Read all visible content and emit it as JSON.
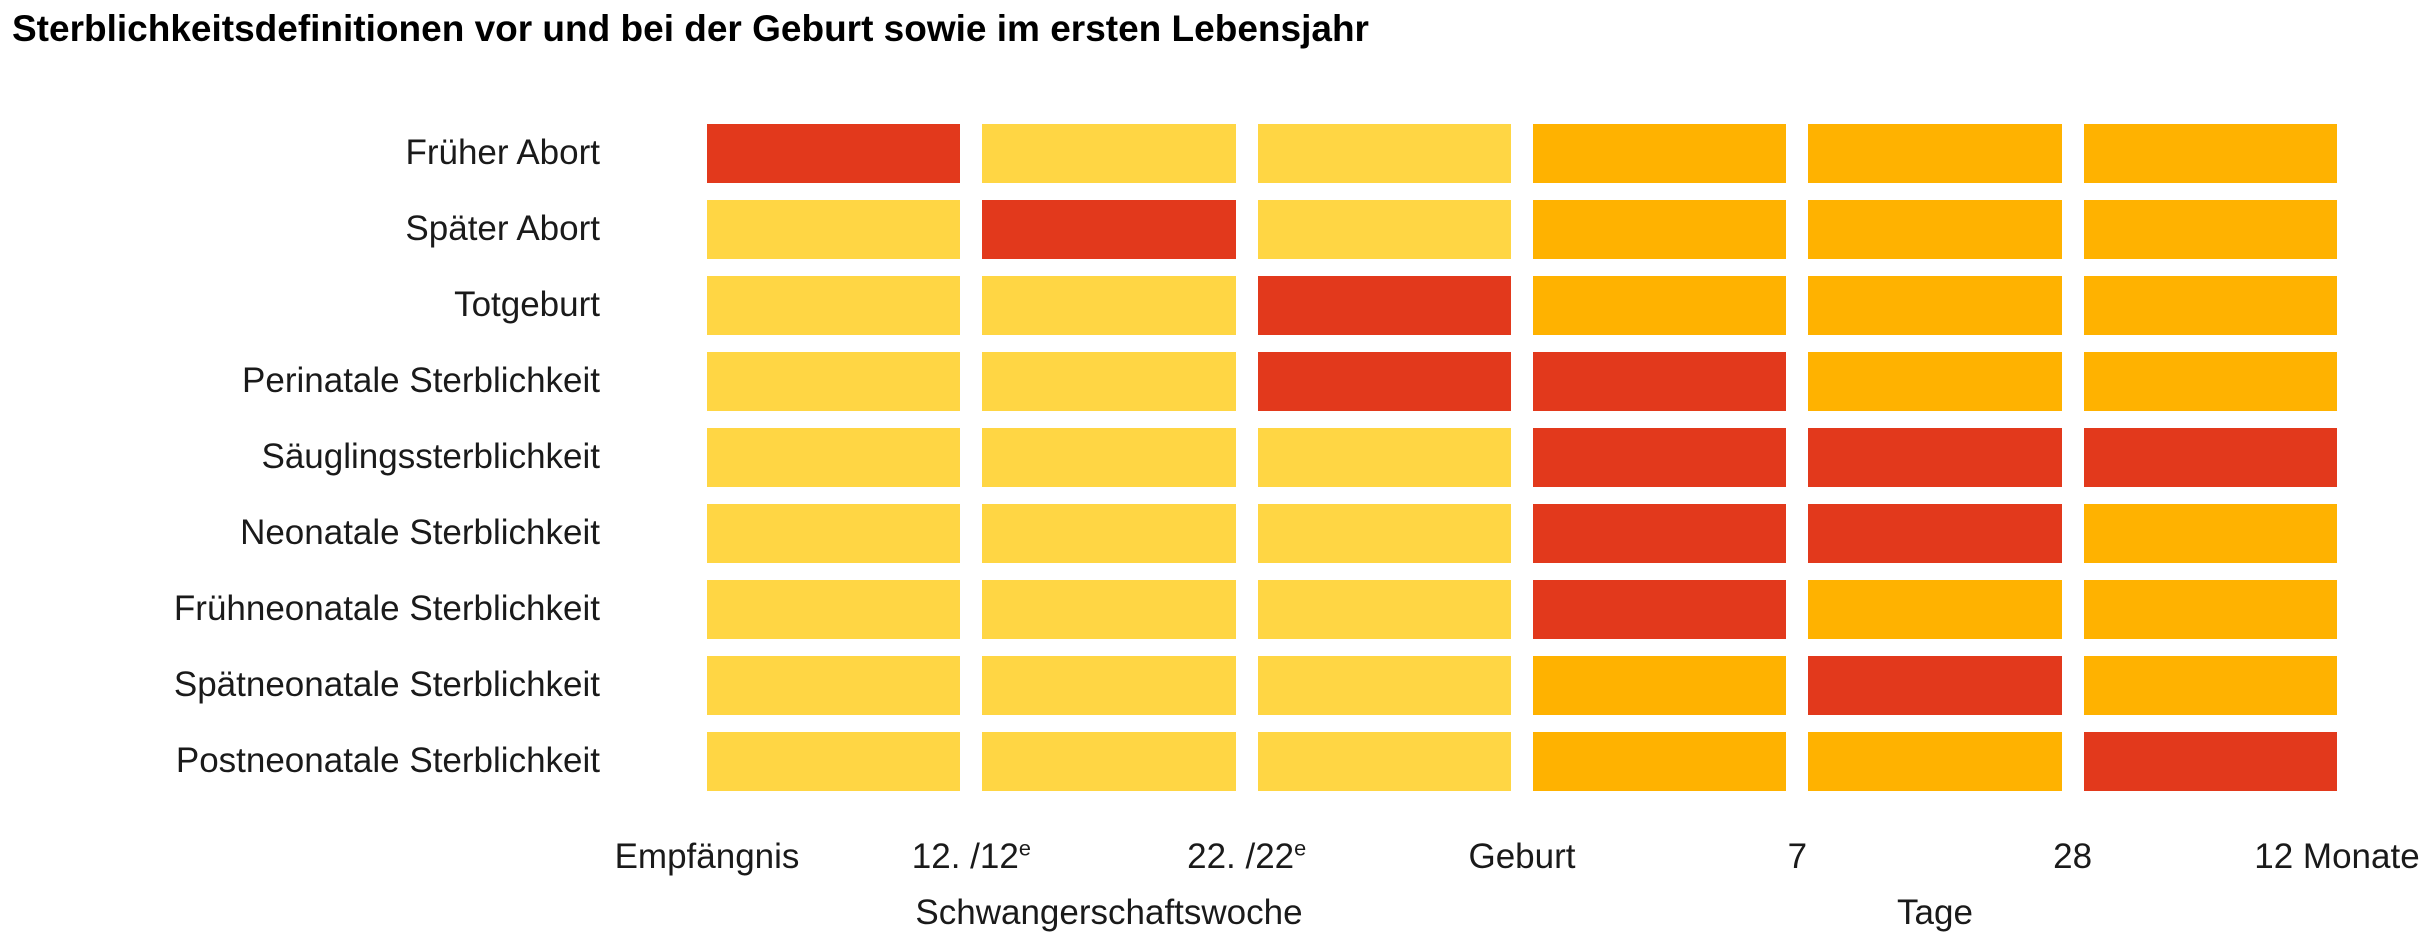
{
  "chart_data": {
    "type": "heatmap",
    "title": "Sterblichkeitsdefinitionen vor und bei der Geburt sowie im ersten Lebensjahr",
    "rows": [
      "Früher Abort",
      "Später Abort",
      "Totgeburt",
      "Perinatale Sterblichkeit",
      "Säuglingssterblichkeit",
      "Neonatale Sterblichkeit",
      "Frühneonatale Sterblichkeit",
      "Spätneonatale Sterblichkeit",
      "Postneonatale Sterblichkeit"
    ],
    "columns": [
      "Empfängnis bis 12. Schwangerschaftswoche",
      "12. bis 22. Schwangerschaftswoche",
      "22. Schwangerschaftswoche bis Geburt",
      "Geburt bis 7 Tage",
      "7 bis 28 Tage",
      "28 Tage bis 12 Monate"
    ],
    "cells": [
      [
        "red",
        "yellow",
        "yellow",
        "orange",
        "orange",
        "orange"
      ],
      [
        "yellow",
        "red",
        "yellow",
        "orange",
        "orange",
        "orange"
      ],
      [
        "yellow",
        "yellow",
        "red",
        "orange",
        "orange",
        "orange"
      ],
      [
        "yellow",
        "yellow",
        "red",
        "red",
        "orange",
        "orange"
      ],
      [
        "yellow",
        "yellow",
        "yellow",
        "red",
        "red",
        "red"
      ],
      [
        "yellow",
        "yellow",
        "yellow",
        "red",
        "red",
        "orange"
      ],
      [
        "yellow",
        "yellow",
        "yellow",
        "red",
        "orange",
        "orange"
      ],
      [
        "yellow",
        "yellow",
        "yellow",
        "orange",
        "red",
        "orange"
      ],
      [
        "yellow",
        "yellow",
        "yellow",
        "orange",
        "orange",
        "red"
      ]
    ],
    "color_map": {
      "yellow": "#FFD644",
      "orange": "#FFB200",
      "red": "#E2391C"
    },
    "x_axis": {
      "boundaries": [
        {
          "label": "Empfängnis"
        },
        {
          "label": "12. /12",
          "sup": "e"
        },
        {
          "label": "22. /22",
          "sup": "e"
        },
        {
          "label": "Geburt"
        },
        {
          "label": "7"
        },
        {
          "label": "28"
        },
        {
          "label": "12 Monate"
        }
      ],
      "sublabels": [
        {
          "label": "Schwangerschaftswoche",
          "column": 1
        },
        {
          "label": "Tage",
          "column": 4
        }
      ]
    },
    "legend_position": "none",
    "grid": false
  }
}
